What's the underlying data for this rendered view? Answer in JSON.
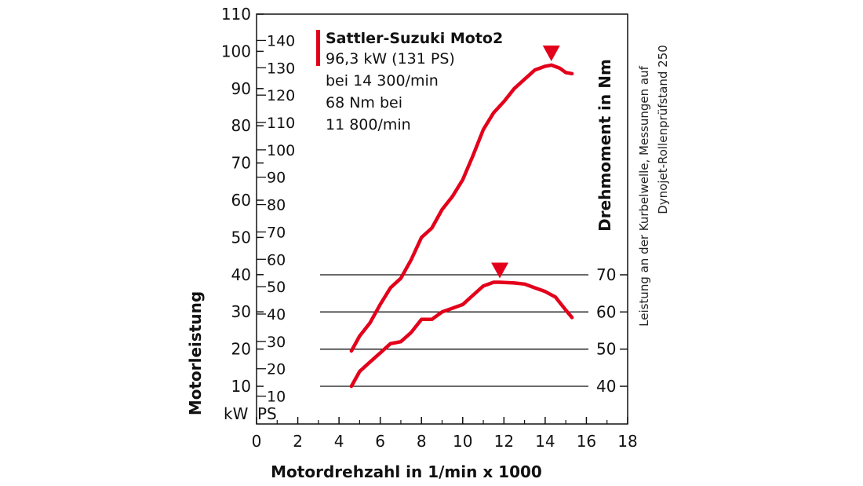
{
  "chart_data": {
    "type": "line",
    "xlabel": "Motordrehzahl in 1/min x 1000",
    "ylabel_left": "Motorleistung",
    "ylabel_right": "Drehmoment in Nm",
    "side_note_lines": [
      "Leistung an der Kurbelwelle, Messungen auf",
      "Dynojet-Rollenprüfstand 250"
    ],
    "unit_kw": "kW",
    "unit_ps": "PS",
    "xlim": [
      0,
      18
    ],
    "x_ticks": [
      "0",
      "2",
      "4",
      "6",
      "8",
      "10",
      "12",
      "14",
      "16",
      "18"
    ],
    "kw_lim": [
      5,
      110
    ],
    "kw_ticks": [
      "10",
      "20",
      "30",
      "40",
      "50",
      "60",
      "70",
      "80",
      "90",
      "100",
      "110"
    ],
    "ps_ticks": [
      "10",
      "20",
      "30",
      "40",
      "50",
      "60",
      "70",
      "80",
      "90",
      "100",
      "110",
      "120",
      "130",
      "140"
    ],
    "nm_ticks": [
      "40",
      "50",
      "60",
      "70"
    ],
    "legend": {
      "title": "Sattler-Suzuki Moto2",
      "lines": [
        "96,3 kW (131 PS)",
        "bei 14 300/min",
        "68 Nm bei",
        "11 800/min"
      ]
    },
    "series": [
      {
        "axis": "kW",
        "color": "#e3001b",
        "peak": [
          14.3,
          96.3
        ],
        "x": [
          4.6,
          5.0,
          5.5,
          6.0,
          6.5,
          7.0,
          7.5,
          8.0,
          8.5,
          9.0,
          9.5,
          10.0,
          10.5,
          11.0,
          11.5,
          12.0,
          12.5,
          13.0,
          13.5,
          14.0,
          14.3,
          14.7,
          15.0,
          15.3
        ],
        "y": [
          19.5,
          23.5,
          27.0,
          32.0,
          36.5,
          39.0,
          44.0,
          50.0,
          52.5,
          57.5,
          61.0,
          65.5,
          72.0,
          79.0,
          83.5,
          86.5,
          90.0,
          92.5,
          95.0,
          96.0,
          96.3,
          95.5,
          94.3,
          94.0
        ]
      },
      {
        "axis": "Nm",
        "color": "#e3001b",
        "peak": [
          11.8,
          68
        ],
        "x": [
          4.6,
          5.0,
          5.5,
          6.0,
          6.5,
          7.0,
          7.5,
          8.0,
          8.5,
          9.0,
          9.5,
          10.0,
          10.5,
          11.0,
          11.5,
          11.8,
          12.5,
          13.0,
          13.5,
          14.0,
          14.5,
          15.0,
          15.3
        ],
        "y": [
          40.0,
          44.0,
          46.5,
          49.0,
          51.5,
          52.0,
          54.5,
          58.0,
          58.0,
          60.0,
          61.0,
          62.0,
          64.5,
          67.0,
          68.0,
          68.0,
          67.8,
          67.5,
          66.5,
          65.5,
          64.0,
          60.5,
          58.5
        ]
      }
    ]
  }
}
